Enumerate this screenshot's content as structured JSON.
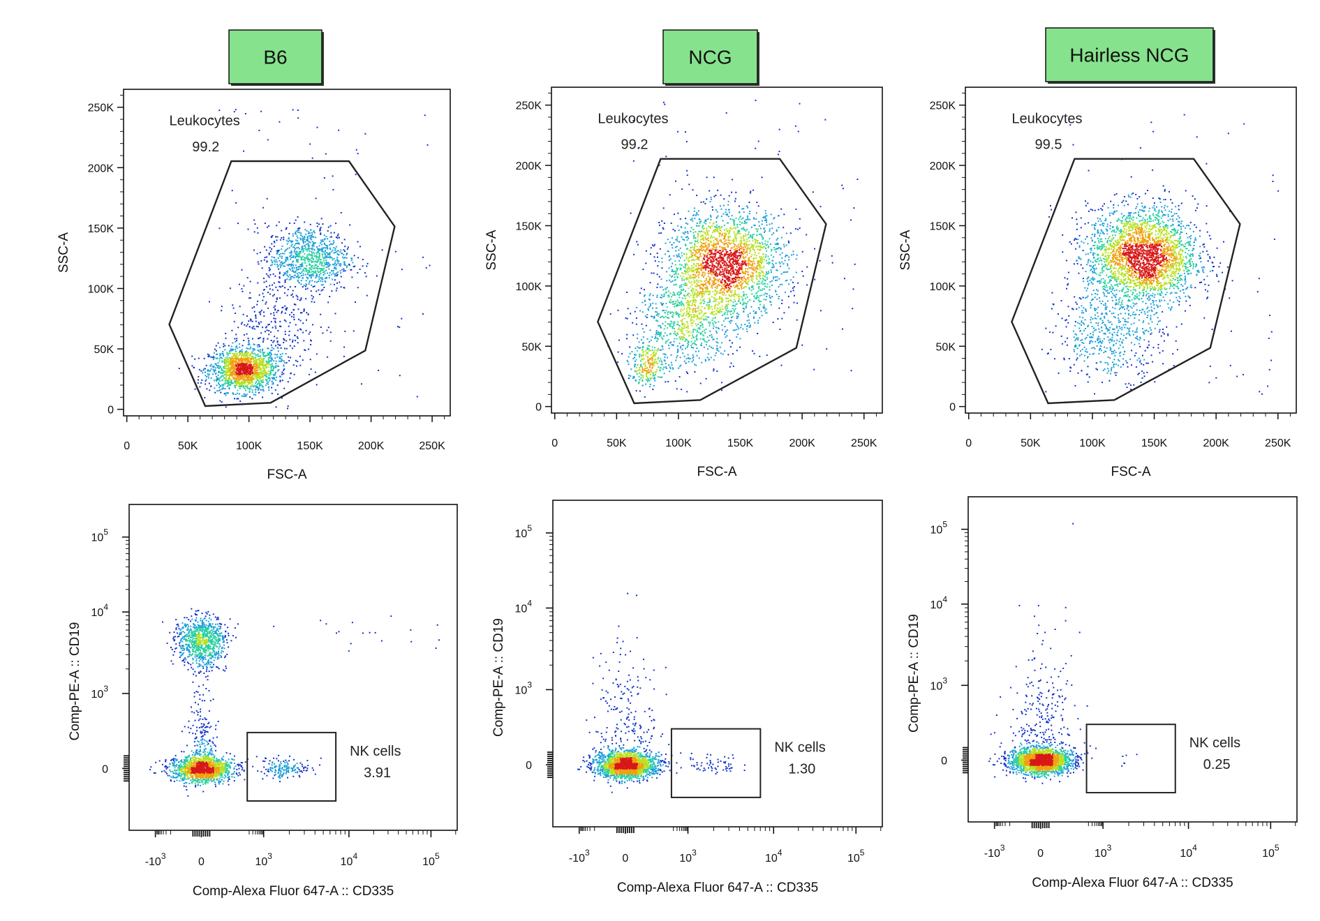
{
  "chart_data": [
    {
      "type": "scatter",
      "sample": "B6",
      "header": "B6",
      "xlabel": "FSC-A",
      "ylabel": "SSC-A",
      "xlim": [
        0,
        262144
      ],
      "ylim": [
        0,
        262144
      ],
      "xticks": [
        "0",
        "50K",
        "100K",
        "150K",
        "200K",
        "250K"
      ],
      "yticks": [
        "0",
        "50K",
        "100K",
        "150K",
        "200K",
        "250K"
      ],
      "gate": {
        "name": "Leukocytes",
        "value": "99.2"
      },
      "populations": [
        {
          "x": 95000,
          "y": 33000,
          "sx": 14000,
          "sy": 9000,
          "n": 1500
        },
        {
          "x": 148000,
          "y": 125000,
          "sx": 17000,
          "sy": 14000,
          "n": 900
        },
        {
          "x": 120000,
          "y": 70000,
          "sx": 18000,
          "sy": 22000,
          "n": 300
        }
      ]
    },
    {
      "type": "scatter",
      "sample": "NCG",
      "header": "NCG",
      "xlabel": "FSC-A",
      "ylabel": "SSC-A",
      "xlim": [
        0,
        262144
      ],
      "ylim": [
        0,
        262144
      ],
      "xticks": [
        "0",
        "50K",
        "100K",
        "150K",
        "200K",
        "250K"
      ],
      "yticks": [
        "0",
        "50K",
        "100K",
        "150K",
        "200K",
        "250K"
      ],
      "gate": {
        "name": "Leukocytes",
        "value": "99.2"
      },
      "populations": [
        {
          "x": 138000,
          "y": 118000,
          "sx": 24000,
          "sy": 22000,
          "n": 2300
        },
        {
          "x": 75000,
          "y": 35000,
          "sx": 8000,
          "sy": 9000,
          "n": 250
        },
        {
          "x": 105000,
          "y": 70000,
          "sx": 20000,
          "sy": 20000,
          "n": 700
        }
      ]
    },
    {
      "type": "scatter",
      "sample": "Hairless NCG",
      "header": "Hairless NCG",
      "xlabel": "FSC-A",
      "ylabel": "SSC-A",
      "xlim": [
        0,
        262144
      ],
      "ylim": [
        0,
        262144
      ],
      "xticks": [
        "0",
        "50K",
        "100K",
        "150K",
        "200K",
        "250K"
      ],
      "yticks": [
        "0",
        "50K",
        "100K",
        "150K",
        "200K",
        "250K"
      ],
      "gate": {
        "name": "Leukocytes",
        "value": "99.5"
      },
      "populations": [
        {
          "x": 140000,
          "y": 125000,
          "sx": 22000,
          "sy": 20000,
          "n": 2700
        },
        {
          "x": 115000,
          "y": 60000,
          "sx": 22000,
          "sy": 18000,
          "n": 500
        }
      ]
    },
    {
      "type": "scatter",
      "sample": "B6",
      "xlabel": "Comp-Alexa Fluor 647-A :: CD335",
      "ylabel": "Comp-PE-A :: CD19",
      "xscale": "biexponential",
      "yscale": "biexponential",
      "xticks": [
        "-10^3",
        "0",
        "10^3",
        "10^4",
        "10^5"
      ],
      "yticks": [
        "0",
        "10^3",
        "10^4",
        "10^5"
      ],
      "gate": {
        "name": "NK cells",
        "value": "3.91"
      },
      "populations": [
        {
          "x": 0,
          "y": 0,
          "spread": 1.0,
          "n": 1400
        },
        {
          "x": 0,
          "y": 4500,
          "spread": 1.0,
          "n": 850
        },
        {
          "x": 1800,
          "y": 0,
          "spread": 0.8,
          "n": 160
        },
        {
          "x": 0,
          "y": 1000,
          "spread": 0.6,
          "n": 120
        }
      ]
    },
    {
      "type": "scatter",
      "sample": "NCG",
      "xlabel": "Comp-Alexa Fluor 647-A :: CD335",
      "ylabel": "Comp-PE-A :: CD19",
      "xscale": "biexponential",
      "yscale": "biexponential",
      "xticks": [
        "-10^3",
        "0",
        "10^3",
        "10^4",
        "10^5"
      ],
      "yticks": [
        "0",
        "10^3",
        "10^4",
        "10^5"
      ],
      "gate": {
        "name": "NK cells",
        "value": "1.30"
      },
      "populations": [
        {
          "x": 0,
          "y": 0,
          "spread": 1.0,
          "n": 1900
        },
        {
          "x": 0,
          "y": 700,
          "spread": 1.4,
          "n": 220
        },
        {
          "x": 1800,
          "y": 0,
          "spread": 0.9,
          "n": 60
        }
      ]
    },
    {
      "type": "scatter",
      "sample": "Hairless NCG",
      "xlabel": "Comp-Alexa Fluor 647-A :: CD335",
      "ylabel": "Comp-PE-A :: CD19",
      "xscale": "biexponential",
      "yscale": "biexponential",
      "xticks": [
        "-10^3",
        "0",
        "10^3",
        "10^4",
        "10^5"
      ],
      "yticks": [
        "0",
        "10^3",
        "10^4",
        "10^5"
      ],
      "gate": {
        "name": "NK cells",
        "value": "0.25"
      },
      "populations": [
        {
          "x": 0,
          "y": 0,
          "spread": 1.0,
          "n": 2100
        },
        {
          "x": 0,
          "y": 700,
          "spread": 1.4,
          "n": 240
        },
        {
          "x": 2000,
          "y": 0,
          "spread": 0.6,
          "n": 6
        }
      ]
    }
  ],
  "colors": {
    "header_fill": "#86E28C",
    "axis": "#111111",
    "gate": "#222222",
    "density_low": "#0a1fb8",
    "density_mid": "#20c8c8",
    "density_high": "#d01818"
  }
}
